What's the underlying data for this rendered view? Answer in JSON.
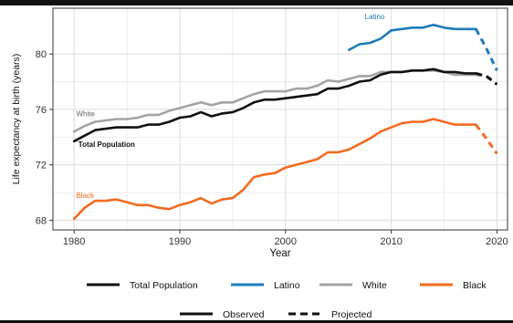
{
  "chart_data": {
    "type": "line",
    "title": "",
    "xlabel": "Year",
    "ylabel": "Life expectancy at birth (years)",
    "xlim": [
      1978,
      2021
    ],
    "ylim": [
      67.3,
      83.3
    ],
    "xticks": [
      1980,
      1990,
      2000,
      2010,
      2020
    ],
    "yticks": [
      68,
      72,
      76,
      80
    ],
    "grid": true,
    "legend_position": "bottom",
    "series": [
      {
        "name": "Latino",
        "color": "#1f7bb8",
        "observed": {
          "x": [
            2006,
            2007,
            2008,
            2009,
            2010,
            2011,
            2012,
            2013,
            2014,
            2015,
            2016,
            2017,
            2018
          ],
          "y": [
            80.3,
            80.7,
            80.8,
            81.1,
            81.7,
            81.8,
            81.9,
            81.9,
            82.1,
            81.9,
            81.8,
            81.8,
            81.8
          ]
        },
        "projected": {
          "x": [
            2018,
            2019,
            2020
          ],
          "y": [
            81.8,
            80.4,
            78.8
          ]
        }
      },
      {
        "name": "White",
        "color": "#a3a3a3",
        "observed": {
          "x": [
            1980,
            1981,
            1982,
            1983,
            1984,
            1985,
            1986,
            1987,
            1988,
            1989,
            1990,
            1991,
            1992,
            1993,
            1994,
            1995,
            1996,
            1997,
            1998,
            1999,
            2000,
            2001,
            2002,
            2003,
            2004,
            2005,
            2006,
            2007,
            2008,
            2009,
            2010,
            2011,
            2012,
            2013,
            2014,
            2015,
            2016,
            2017,
            2018
          ],
          "y": [
            74.4,
            74.8,
            75.1,
            75.2,
            75.3,
            75.3,
            75.4,
            75.6,
            75.6,
            75.9,
            76.1,
            76.3,
            76.5,
            76.3,
            76.5,
            76.5,
            76.8,
            77.1,
            77.3,
            77.3,
            77.3,
            77.5,
            77.5,
            77.7,
            78.1,
            78.0,
            78.2,
            78.4,
            78.4,
            78.7,
            78.7,
            78.7,
            78.8,
            78.8,
            78.8,
            78.7,
            78.5,
            78.5,
            78.5
          ]
        },
        "projected": {
          "x": [
            2018,
            2019,
            2020
          ],
          "y": [
            78.5,
            78.4,
            77.8
          ]
        }
      },
      {
        "name": "Total Population",
        "color": "#111111",
        "observed": {
          "x": [
            1980,
            1981,
            1982,
            1983,
            1984,
            1985,
            1986,
            1987,
            1988,
            1989,
            1990,
            1991,
            1992,
            1993,
            1994,
            1995,
            1996,
            1997,
            1998,
            1999,
            2000,
            2001,
            2002,
            2003,
            2004,
            2005,
            2006,
            2007,
            2008,
            2009,
            2010,
            2011,
            2012,
            2013,
            2014,
            2015,
            2016,
            2017,
            2018
          ],
          "y": [
            73.7,
            74.1,
            74.5,
            74.6,
            74.7,
            74.7,
            74.7,
            74.9,
            74.9,
            75.1,
            75.4,
            75.5,
            75.8,
            75.5,
            75.7,
            75.8,
            76.1,
            76.5,
            76.7,
            76.7,
            76.8,
            76.9,
            77.0,
            77.1,
            77.5,
            77.5,
            77.7,
            78.0,
            78.1,
            78.5,
            78.7,
            78.7,
            78.8,
            78.8,
            78.9,
            78.7,
            78.7,
            78.6,
            78.6
          ]
        },
        "projected": {
          "x": [
            2018,
            2019,
            2020
          ],
          "y": [
            78.6,
            78.4,
            77.8
          ]
        }
      },
      {
        "name": "Black",
        "color": "#f26b21",
        "observed": {
          "x": [
            1980,
            1981,
            1982,
            1983,
            1984,
            1985,
            1986,
            1987,
            1988,
            1989,
            1990,
            1991,
            1992,
            1993,
            1994,
            1995,
            1996,
            1997,
            1998,
            1999,
            2000,
            2001,
            2002,
            2003,
            2004,
            2005,
            2006,
            2007,
            2008,
            2009,
            2010,
            2011,
            2012,
            2013,
            2014,
            2015,
            2016,
            2017,
            2018
          ],
          "y": [
            68.1,
            68.9,
            69.4,
            69.4,
            69.5,
            69.3,
            69.1,
            69.1,
            68.9,
            68.8,
            69.1,
            69.3,
            69.6,
            69.2,
            69.5,
            69.6,
            70.2,
            71.1,
            71.3,
            71.4,
            71.8,
            72.0,
            72.2,
            72.4,
            72.9,
            72.9,
            73.1,
            73.5,
            73.9,
            74.4,
            74.7,
            75.0,
            75.1,
            75.1,
            75.3,
            75.1,
            74.9,
            74.9,
            74.9
          ]
        },
        "projected": {
          "x": [
            2018,
            2019,
            2020
          ],
          "y": [
            74.9,
            73.9,
            72.8
          ]
        }
      }
    ],
    "series_labels": [
      {
        "text": "Latino",
        "color": "#1f7bb8",
        "x": 2007.5,
        "y": 82.5
      },
      {
        "text": "White",
        "color": "#666666",
        "x": 1980.2,
        "y": 75.5
      },
      {
        "text": "Total Population",
        "color": "#111111",
        "x": 1980.4,
        "y": 73.3
      },
      {
        "text": "Black",
        "color": "#f26b21",
        "x": 1980.2,
        "y": 69.6
      }
    ],
    "legend_groups": [
      {
        "label": "Total Population",
        "color": "#111111"
      },
      {
        "label": "Latino",
        "color": "#1f7bb8"
      },
      {
        "label": "White",
        "color": "#a3a3a3"
      },
      {
        "label": "Black",
        "color": "#f26b21"
      }
    ],
    "legend_linetypes": [
      {
        "label": "Observed",
        "style": "solid"
      },
      {
        "label": "Projected",
        "style": "dashed"
      }
    ]
  }
}
